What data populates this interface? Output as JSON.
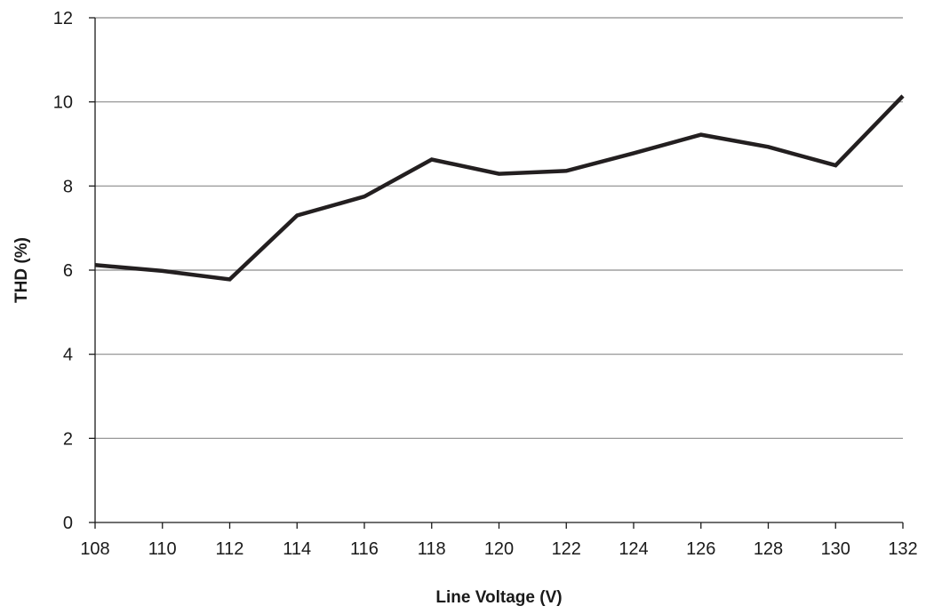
{
  "chart_data": {
    "type": "line",
    "title": "",
    "xlabel": "Line Voltage (V)",
    "ylabel": "THD (%)",
    "xlim": [
      108,
      132
    ],
    "ylim": [
      0,
      12
    ],
    "x_ticks": [
      108,
      110,
      112,
      114,
      116,
      118,
      120,
      122,
      124,
      126,
      128,
      130,
      132
    ],
    "y_ticks": [
      0,
      2,
      4,
      6,
      8,
      10,
      12
    ],
    "grid": "horizontal",
    "legend": "none",
    "series": [
      {
        "color": "#231f20",
        "x": [
          108,
          110,
          112,
          114,
          116,
          118,
          120,
          122,
          124,
          126,
          128,
          130,
          132
        ],
        "y": [
          6.12,
          5.98,
          5.78,
          7.3,
          7.75,
          8.63,
          8.29,
          8.36,
          8.78,
          9.22,
          8.93,
          8.49,
          10.14
        ]
      }
    ]
  }
}
